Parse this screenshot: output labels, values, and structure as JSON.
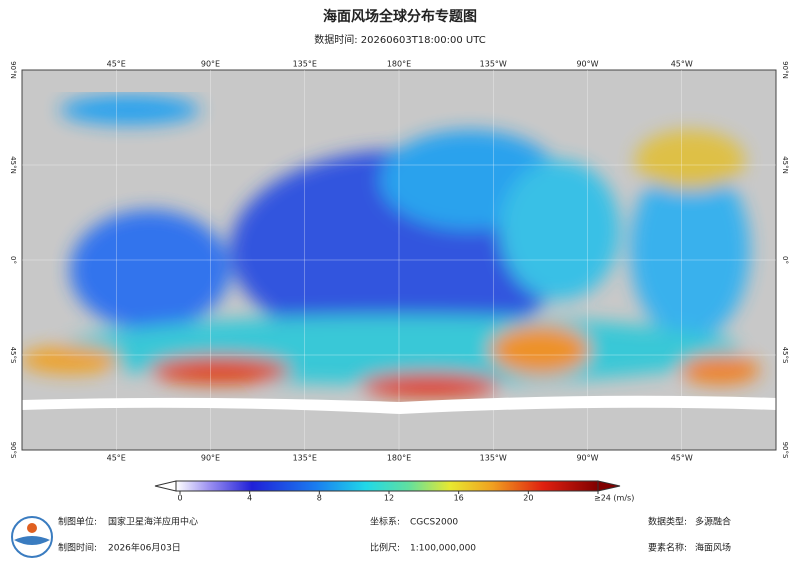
{
  "header": {
    "title": "海面风场全球分布专题图",
    "subtitle": "数据时间: 20260603T18:00:00 UTC"
  },
  "map": {
    "lon_labels": [
      "45°E",
      "90°E",
      "135°E",
      "180°E",
      "135°W",
      "90°W",
      "45°W"
    ],
    "lat_labels": [
      "90°N",
      "45°N",
      "0°",
      "45°S",
      "90°S"
    ]
  },
  "colorbar": {
    "lim": [
      0,
      24
    ],
    "ticks": [
      0,
      4,
      8,
      12,
      16,
      20,
      {
        "value": 24,
        "label": "≥24 (m/s)"
      }
    ]
  },
  "footer": {
    "rows": [
      [
        [
          "制图单位:",
          "国家卫星海洋应用中心"
        ],
        [
          "坐标系:",
          "CGCS2000"
        ],
        [
          "数据类型:",
          "多源融合"
        ]
      ],
      [
        [
          "制图时间:",
          "2026年06月03日"
        ],
        [
          "比例尺:",
          "1:100,000,000"
        ],
        [
          "要素名称:",
          "海面风场"
        ]
      ]
    ]
  }
}
